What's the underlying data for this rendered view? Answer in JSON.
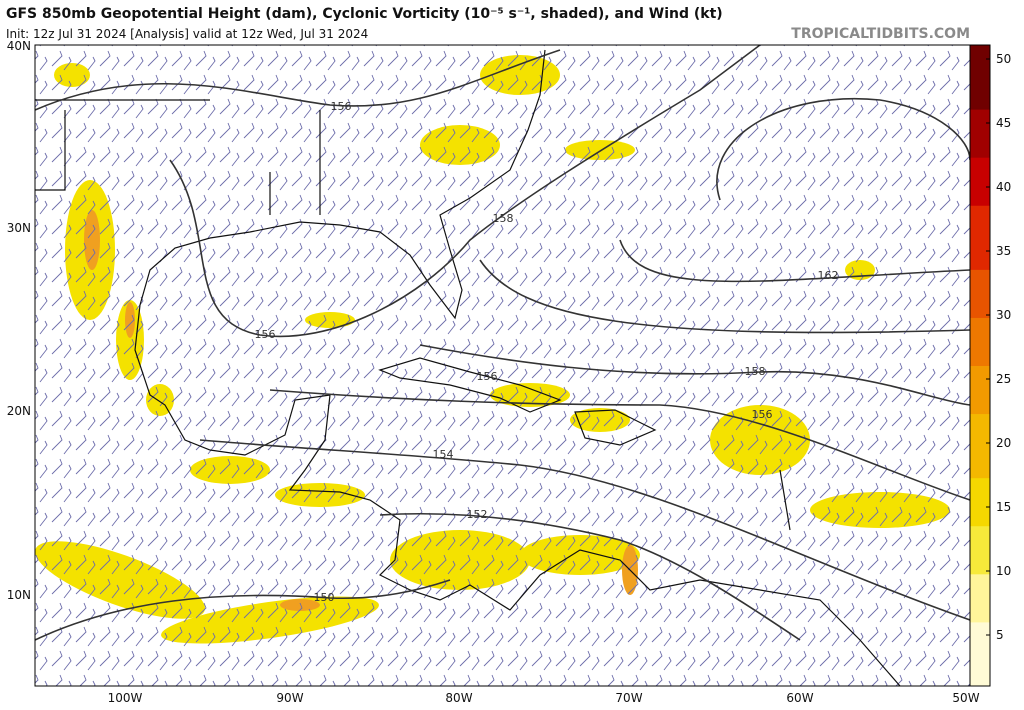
{
  "header": {
    "title": "GFS 850mb Geopotential Height (dam), Cyclonic Vorticity (10⁻⁵ s⁻¹, shaded), and Wind (kt)",
    "init": "Init: 12z Jul 31 2024   [Analysis]   valid at 12z Wed, Jul 31 2024",
    "site": "TROPICALTIDBITS.COM"
  },
  "map": {
    "lat_labels": [
      "40N",
      "30N",
      "20N",
      "10N"
    ],
    "lon_labels": [
      "100W",
      "90W",
      "80W",
      "70W",
      "60W",
      "50W"
    ],
    "contour_labels": [
      156,
      158,
      162,
      156,
      156,
      158,
      156,
      154,
      152,
      150
    ]
  },
  "colorbar": {
    "ticks": [
      5,
      10,
      15,
      20,
      25,
      30,
      35,
      40,
      45,
      50
    ]
  }
}
